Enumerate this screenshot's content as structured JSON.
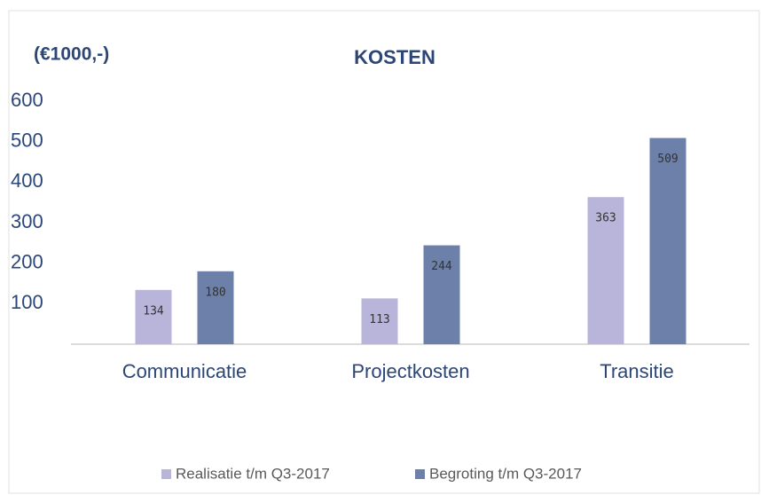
{
  "chart_data": {
    "type": "bar",
    "title": "KOSTEN",
    "y_label": "(€1000,-)",
    "categories": [
      "Communicatie",
      "Projectkosten",
      "Transitie"
    ],
    "series": [
      {
        "name": "Realisatie t/m Q3-2017",
        "color": "#b9b5da",
        "values": [
          134,
          113,
          363
        ]
      },
      {
        "name": "Begroting t/m Q3-2017",
        "color": "#6c80a9",
        "values": [
          180,
          244,
          509
        ]
      }
    ],
    "ylim": [
      0,
      600
    ],
    "yticks": [
      100,
      200,
      300,
      400,
      500,
      600
    ],
    "grid": false,
    "legend": "bottom"
  }
}
